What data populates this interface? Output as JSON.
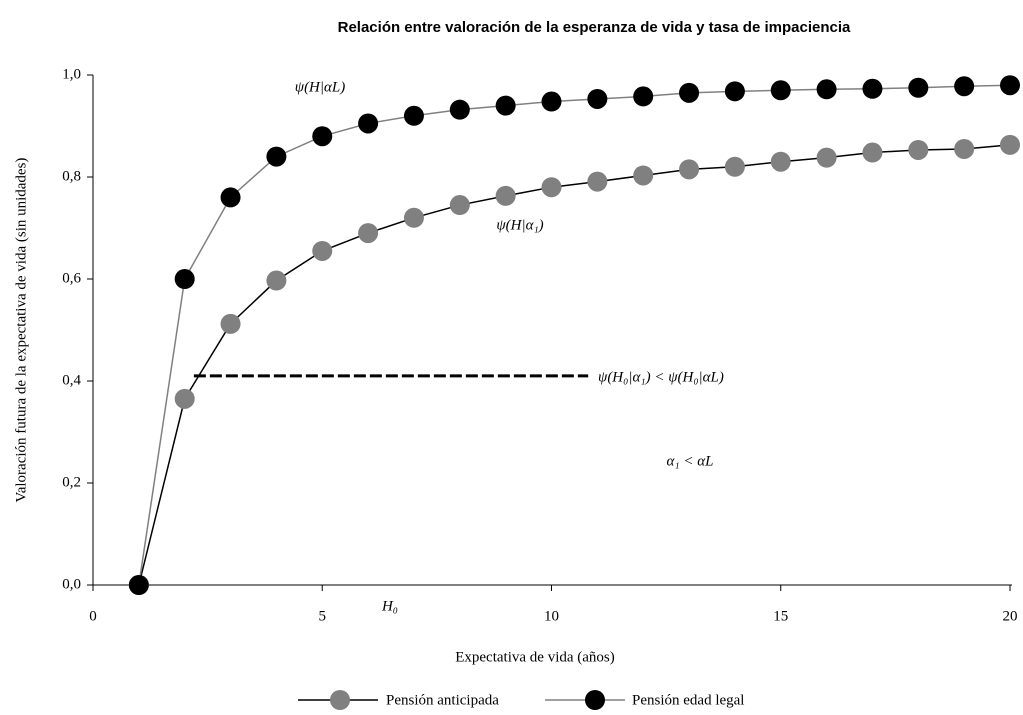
{
  "chart_data": {
    "type": "line",
    "title": "Relación entre valoración de la esperanza de vida y tasa de impaciencia",
    "x_label": "Expectativa de vida (años)",
    "y_label": "Valoración futura de la expectativa de vida (sin unidades)",
    "x": [
      1,
      2,
      3,
      4,
      5,
      6,
      7,
      8,
      9,
      10,
      11,
      12,
      13,
      14,
      15,
      16,
      17,
      18,
      19,
      20
    ],
    "series": [
      {
        "name": "Pensión anticipada",
        "color": "#808080",
        "line_color": "#000000",
        "values": [
          0,
          0.365,
          0.512,
          0.597,
          0.655,
          0.69,
          0.72,
          0.745,
          0.763,
          0.78,
          0.791,
          0.803,
          0.815,
          0.82,
          0.83,
          0.838,
          0.848,
          0.853,
          0.855,
          0.863
        ]
      },
      {
        "name": "Pensión edad legal",
        "color": "#000000",
        "line_color": "#808080",
        "values": [
          0,
          0.6,
          0.76,
          0.84,
          0.88,
          0.905,
          0.92,
          0.932,
          0.94,
          0.948,
          0.953,
          0.958,
          0.965,
          0.968,
          0.97,
          0.972,
          0.973,
          0.975,
          0.978,
          0.98
        ]
      }
    ],
    "reference_line": {
      "y": 0.41,
      "x": [
        2.2,
        10.8
      ]
    },
    "annotations": [
      "ψ(H|αL)",
      "ψ(H|α₁)",
      "ψ(H₀|α₁) < ψ(H₀|αL)",
      "α₁ < αL",
      "H₀"
    ],
    "xlim": [
      0,
      20
    ],
    "xticks": [
      0,
      5,
      10,
      15,
      20
    ],
    "ylim": [
      0,
      1
    ],
    "yticks": [
      {
        "value": 0,
        "label": "0,0"
      },
      {
        "value": 0.2,
        "label": "0,2"
      },
      {
        "value": 0.4,
        "label": "0,4"
      },
      {
        "value": 0.6,
        "label": "0,6"
      },
      {
        "value": 0.8,
        "label": "0,8"
      },
      {
        "value": 1,
        "label": "1,0"
      }
    ]
  }
}
